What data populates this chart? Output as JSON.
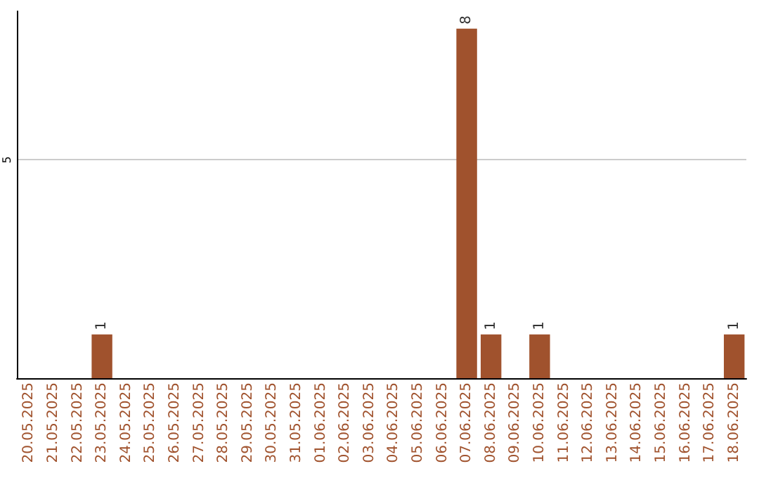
{
  "chart_data": {
    "type": "bar",
    "categories": [
      "20.05.2025",
      "21.05.2025",
      "22.05.2025",
      "23.05.2025",
      "24.05.2025",
      "25.05.2025",
      "26.05.2025",
      "27.05.2025",
      "28.05.2025",
      "29.05.2025",
      "30.05.2025",
      "31.05.2025",
      "01.06.2025",
      "02.06.2025",
      "03.06.2025",
      "04.06.2025",
      "05.06.2025",
      "06.06.2025",
      "07.06.2025",
      "08.06.2025",
      "09.06.2025",
      "10.06.2025",
      "11.06.2025",
      "12.06.2025",
      "13.06.2025",
      "14.06.2025",
      "15.06.2025",
      "16.06.2025",
      "17.06.2025",
      "18.06.2025"
    ],
    "values": [
      0,
      0,
      0,
      1,
      0,
      0,
      0,
      0,
      0,
      0,
      0,
      0,
      0,
      0,
      0,
      0,
      0,
      0,
      8,
      1,
      0,
      1,
      0,
      0,
      0,
      0,
      0,
      0,
      0,
      1
    ],
    "value_labels": [
      null,
      null,
      null,
      "1",
      null,
      null,
      null,
      null,
      null,
      null,
      null,
      null,
      null,
      null,
      null,
      null,
      null,
      null,
      "8",
      "1",
      null,
      "1",
      null,
      null,
      null,
      null,
      null,
      null,
      null,
      "1"
    ],
    "color": "#a0522d",
    "ylim": [
      0,
      8.4
    ],
    "yticks": [
      5
    ],
    "grid": "y"
  }
}
